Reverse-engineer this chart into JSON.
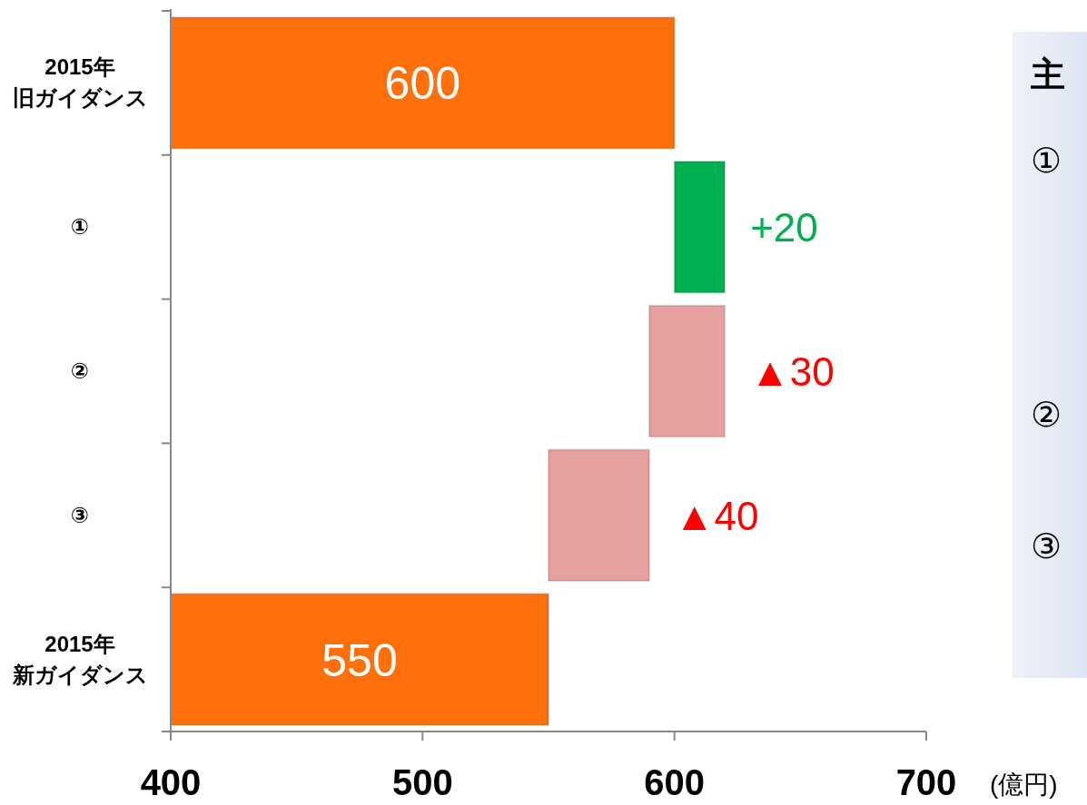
{
  "chart_data": {
    "type": "bar",
    "orientation": "horizontal",
    "categories": [
      "2015年旧ガイダンス",
      "①",
      "②",
      "③",
      "2015年新ガイダンス"
    ],
    "values": [
      600,
      20,
      -30,
      -40,
      550
    ],
    "base": [
      null,
      600,
      620,
      590,
      null
    ],
    "colors": [
      "#ff6f0a",
      "#00b050",
      "#e6a0a0",
      "#e6a0a0",
      "#ff6f0a"
    ],
    "value_labels": [
      "600",
      "+20",
      "▲30",
      "▲40",
      "550"
    ],
    "xlim": [
      400,
      700
    ],
    "xticks": [
      400,
      500,
      600,
      700
    ],
    "xlabel": "(億円)",
    "annotations": [
      "主",
      "①",
      "②",
      "③"
    ]
  }
}
